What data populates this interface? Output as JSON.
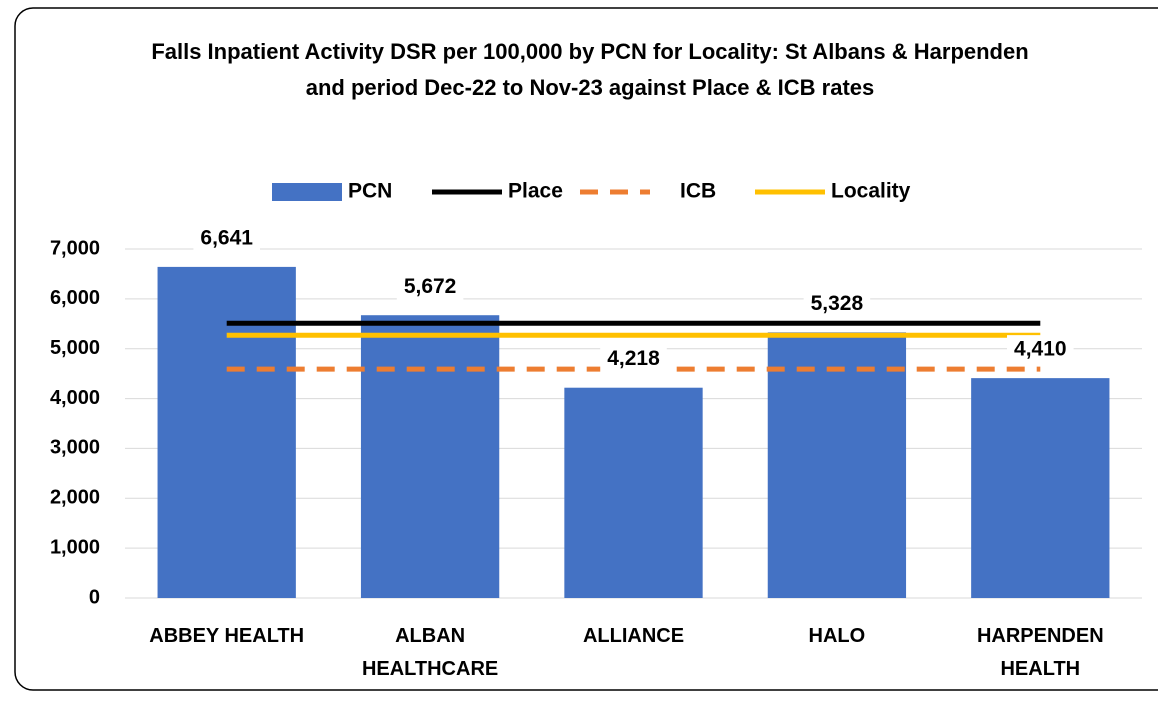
{
  "chart_data": {
    "type": "bar",
    "title": "Falls Inpatient Activity DSR per 100,000 by PCN for Locality: St Albans & Harpenden and period Dec-22 to Nov-23 against Place & ICB rates",
    "categories": [
      "ABBEY HEALTH",
      "ALBAN HEALTHCARE",
      "ALLIANCE",
      "HALO",
      "HARPENDEN HEALTH"
    ],
    "series": [
      {
        "name": "PCN",
        "type": "bar",
        "color": "#4472c4",
        "values": [
          6641,
          5672,
          4218,
          5328,
          4410
        ],
        "value_labels": [
          "6,641",
          "5,672",
          "4,218",
          "5,328",
          "4,410"
        ]
      },
      {
        "name": "Place",
        "type": "line",
        "color": "#000000",
        "values": [
          5510,
          5510,
          5510,
          5510,
          5510
        ]
      },
      {
        "name": "ICB",
        "type": "line",
        "color": "#ed7d31",
        "dashed": true,
        "values": [
          4590,
          4590,
          4590,
          4590,
          4590
        ]
      },
      {
        "name": "Locality",
        "type": "line",
        "color": "#ffc000",
        "values": [
          5270,
          5270,
          5270,
          5270,
          5270
        ]
      }
    ],
    "ylim": [
      0,
      7000
    ],
    "yticks": [
      0,
      {
        "value": 1000,
        "label": "1,000"
      },
      {
        "value": 2000,
        "label": "2,000"
      },
      {
        "value": 3000,
        "label": "3,000"
      },
      {
        "value": 4000,
        "label": "4,000"
      },
      {
        "value": 5000,
        "label": "5,000"
      },
      {
        "value": 6000,
        "label": "6,000"
      },
      {
        "value": 7000,
        "label": "7,000"
      }
    ],
    "grid": true,
    "legend": "top"
  }
}
